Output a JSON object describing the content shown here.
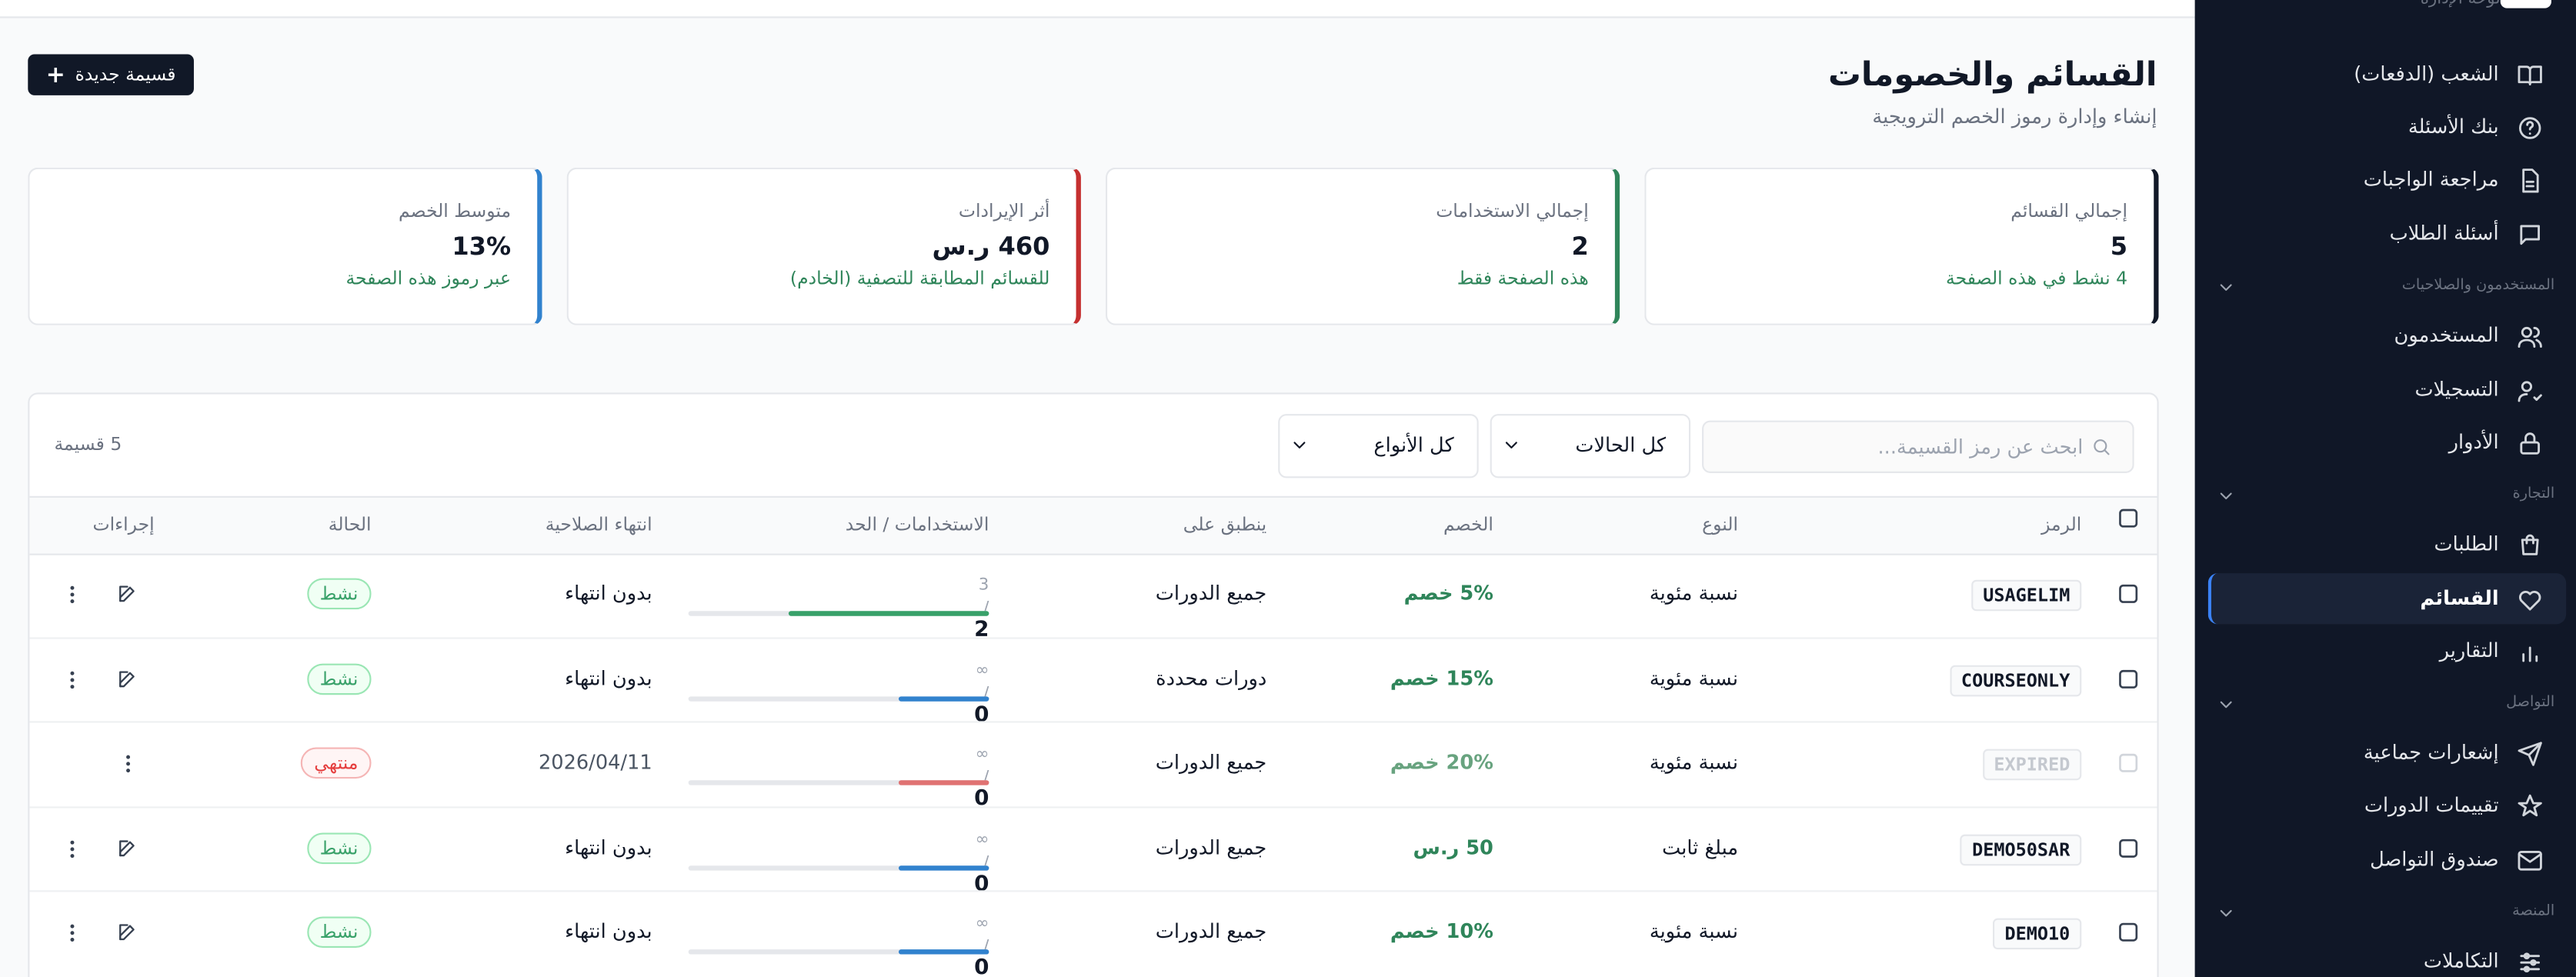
{
  "header": {
    "title": "القسائم والخصومات",
    "subtitle": "إنشاء وإدارة رموز الخصم الترويجية",
    "new_button": "قسيمة جديدة"
  },
  "stats": [
    {
      "label": "إجمالي القسائم",
      "value": "5",
      "note": "4 نشط في هذه الصفحة",
      "color": "#111827"
    },
    {
      "label": "إجمالي الاستخدامات",
      "value": "2",
      "note": "هذه الصفحة فقط",
      "color": "#2f855a"
    },
    {
      "label": "أثر الإيرادات",
      "value": "460 ر.س",
      "note": "للقسائم المطابقة للتصفية (الخادم)",
      "color": "#c53030"
    },
    {
      "label": "متوسط الخصم",
      "value": "13%",
      "note": "عبر رموز هذه الصفحة",
      "color": "#3182ce"
    }
  ],
  "filters": {
    "search_placeholder": "ابحث عن رمز القسيمة...",
    "status": "كل الحالات",
    "type": "كل الأنواع",
    "count": "5 قسيمة"
  },
  "table": {
    "columns": [
      "الرمز",
      "النوع",
      "الخصم",
      "ينطبق على",
      "الاستخدامات / الحد",
      "انتهاء الصلاحية",
      "الحالة",
      "إجراءات"
    ],
    "rows": [
      {
        "code": "USAGELIM",
        "type": "نسبة مئوية",
        "discount": "5% خصم",
        "applies": "جميع الدورات",
        "uses": "2",
        "limit": "3",
        "expiry": "بدون انتهاء",
        "status": "نشط"
      },
      {
        "code": "COURSEONLY",
        "type": "نسبة مئوية",
        "discount": "15% خصم",
        "applies": "دورات محددة",
        "uses": "0",
        "limit": "∞",
        "expiry": "بدون انتهاء",
        "status": "نشط"
      },
      {
        "code": "EXPIRED",
        "type": "نسبة مئوية",
        "discount": "20% خصم",
        "applies": "جميع الدورات",
        "uses": "0",
        "limit": "∞",
        "expiry": "2026/04/11",
        "status": "منتهي"
      },
      {
        "code": "DEMO50SAR",
        "type": "مبلغ ثابت",
        "discount": "50 ر.س",
        "applies": "جميع الدورات",
        "uses": "0",
        "limit": "∞",
        "expiry": "بدون انتهاء",
        "status": "نشط"
      },
      {
        "code": "DEMO10",
        "type": "نسبة مئوية",
        "discount": "10% خصم",
        "applies": "جميع الدورات",
        "uses": "0",
        "limit": "∞",
        "expiry": "بدون انتهاء",
        "status": "نشط"
      }
    ]
  },
  "sidebar": {
    "brand": "لوحة الإدارة",
    "items": [
      {
        "label": "الشعب (الدفعات)"
      },
      {
        "label": "بنك الأسئلة"
      },
      {
        "label": "مراجعة الواجبات"
      },
      {
        "label": "أسئلة الطلاب"
      },
      {
        "section": "المستخدمون والصلاحيات"
      },
      {
        "label": "المستخدمون"
      },
      {
        "label": "التسجيلات"
      },
      {
        "label": "الأدوار"
      },
      {
        "section": "التجارة"
      },
      {
        "label": "الطلبات"
      },
      {
        "label": "القسائم",
        "active": true
      },
      {
        "label": "التقارير"
      },
      {
        "section": "التواصل"
      },
      {
        "label": "إشعارات جماعية"
      },
      {
        "label": "تقييمات الدورات"
      },
      {
        "label": "صندوق التواصل"
      },
      {
        "section": "المنصة"
      },
      {
        "label": "التكاملات"
      }
    ]
  }
}
